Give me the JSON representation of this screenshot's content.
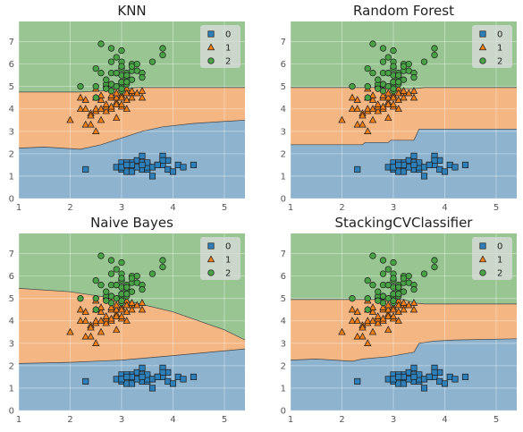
{
  "colors": {
    "class0_region": "#8db3cf",
    "class1_region": "#f4b683",
    "class2_region": "#98c592",
    "class0_marker": "#2f7fb9",
    "class1_marker": "#f07f1a",
    "class2_marker": "#4aa246",
    "plot_bg": "#e5e5e5",
    "grid": "#ffffff"
  },
  "chart_data": [
    {
      "type": "scatter",
      "title": "KNN",
      "xlim": [
        1,
        5.4
      ],
      "ylim": [
        0,
        7.9
      ],
      "xticks": [
        "1",
        "2",
        "3",
        "4",
        "5"
      ],
      "yticks": [
        "0",
        "1",
        "2",
        "3",
        "4",
        "5",
        "6",
        "7"
      ],
      "legend": {
        "position": "top-right",
        "labels": [
          "0",
          "1",
          "2"
        ]
      },
      "regions": {
        "boundary_0_1": [
          [
            1,
            2.25
          ],
          [
            1.5,
            2.3
          ],
          [
            2.2,
            2.2
          ],
          [
            2.6,
            2.4
          ],
          [
            3.0,
            2.7
          ],
          [
            3.4,
            3.0
          ],
          [
            3.8,
            3.2
          ],
          [
            4.4,
            3.35
          ],
          [
            5.4,
            3.5
          ]
        ],
        "boundary_1_2": [
          [
            1,
            4.75
          ],
          [
            2.2,
            4.75
          ],
          [
            2.6,
            4.8
          ],
          [
            3.0,
            4.9
          ],
          [
            3.3,
            4.95
          ],
          [
            3.6,
            4.95
          ],
          [
            4.2,
            4.95
          ],
          [
            5.4,
            4.95
          ]
        ]
      }
    },
    {
      "type": "scatter",
      "title": "Random Forest",
      "xlim": [
        1,
        5.4
      ],
      "ylim": [
        0,
        7.9
      ],
      "xticks": [
        "1",
        "2",
        "3",
        "4",
        "5"
      ],
      "yticks": [
        "0",
        "1",
        "2",
        "3",
        "4",
        "5",
        "6",
        "7"
      ],
      "legend": {
        "position": "top-right",
        "labels": [
          "0",
          "1",
          "2"
        ]
      },
      "regions": {
        "boundary_0_1": [
          [
            1,
            2.4
          ],
          [
            2.4,
            2.4
          ],
          [
            2.45,
            2.5
          ],
          [
            2.9,
            2.5
          ],
          [
            2.95,
            2.6
          ],
          [
            3.4,
            2.6
          ],
          [
            3.5,
            3.1
          ],
          [
            5.4,
            3.1
          ]
        ],
        "boundary_1_2": [
          [
            1,
            4.95
          ],
          [
            2.8,
            4.95
          ],
          [
            3.0,
            4.9
          ],
          [
            3.4,
            4.9
          ],
          [
            3.6,
            4.95
          ],
          [
            5.4,
            4.95
          ]
        ]
      }
    },
    {
      "type": "scatter",
      "title": "Naive Bayes",
      "xlim": [
        1,
        5.4
      ],
      "ylim": [
        0,
        7.9
      ],
      "xticks": [
        "1",
        "2",
        "3",
        "4",
        "5"
      ],
      "yticks": [
        "0",
        "1",
        "2",
        "3",
        "4",
        "5",
        "6",
        "7"
      ],
      "legend": {
        "position": "top-right",
        "labels": [
          "0",
          "1",
          "2"
        ]
      },
      "regions": {
        "boundary_0_1": [
          [
            1,
            2.1
          ],
          [
            2,
            2.15
          ],
          [
            3,
            2.25
          ],
          [
            4,
            2.45
          ],
          [
            5.4,
            2.75
          ]
        ],
        "boundary_1_2": [
          [
            1,
            5.45
          ],
          [
            2,
            5.3
          ],
          [
            3,
            4.95
          ],
          [
            4,
            4.4
          ],
          [
            5,
            3.6
          ],
          [
            5.4,
            3.15
          ]
        ]
      }
    },
    {
      "type": "scatter",
      "title": "StackingCVClassifier",
      "xlim": [
        1,
        5.4
      ],
      "ylim": [
        0,
        7.9
      ],
      "xticks": [
        "1",
        "2",
        "3",
        "4",
        "5"
      ],
      "yticks": [
        "0",
        "1",
        "2",
        "3",
        "4",
        "5",
        "6",
        "7"
      ],
      "legend": {
        "position": "top-right",
        "labels": [
          "0",
          "1",
          "2"
        ]
      },
      "regions": {
        "boundary_0_1": [
          [
            1,
            2.25
          ],
          [
            1.5,
            2.3
          ],
          [
            2.2,
            2.2
          ],
          [
            2.4,
            2.3
          ],
          [
            2.9,
            2.4
          ],
          [
            3.4,
            2.6
          ],
          [
            3.5,
            3.0
          ],
          [
            3.8,
            3.1
          ],
          [
            4.2,
            3.15
          ],
          [
            5.4,
            3.2
          ]
        ],
        "boundary_1_2": [
          [
            1,
            4.95
          ],
          [
            3.2,
            4.95
          ],
          [
            3.4,
            4.8
          ],
          [
            3.6,
            4.75
          ],
          [
            5.4,
            4.75
          ]
        ]
      }
    }
  ],
  "points": {
    "class0": [
      [
        2.3,
        1.3
      ],
      [
        2.9,
        1.4
      ],
      [
        3.0,
        1.4
      ],
      [
        3.0,
        1.3
      ],
      [
        3.1,
        1.5
      ],
      [
        3.1,
        1.2
      ],
      [
        3.2,
        1.4
      ],
      [
        3.2,
        1.6
      ],
      [
        3.2,
        1.3
      ],
      [
        3.3,
        1.4
      ],
      [
        3.3,
        1.7
      ],
      [
        3.4,
        1.5
      ],
      [
        3.4,
        1.4
      ],
      [
        3.4,
        1.6
      ],
      [
        3.4,
        1.3
      ],
      [
        3.4,
        1.9
      ],
      [
        3.5,
        1.5
      ],
      [
        3.5,
        1.3
      ],
      [
        3.5,
        1.4
      ],
      [
        3.6,
        1.4
      ],
      [
        3.6,
        1.0
      ],
      [
        3.7,
        1.5
      ],
      [
        3.8,
        1.9
      ],
      [
        3.8,
        1.6
      ],
      [
        3.8,
        1.5
      ],
      [
        3.9,
        1.3
      ],
      [
        3.9,
        1.7
      ],
      [
        4.0,
        1.2
      ],
      [
        4.1,
        1.5
      ],
      [
        4.2,
        1.4
      ],
      [
        4.4,
        1.5
      ],
      [
        3.0,
        1.6
      ],
      [
        3.1,
        1.6
      ],
      [
        3.2,
        1.2
      ],
      [
        3.0,
        1.4
      ],
      [
        3.5,
        1.6
      ],
      [
        3.3,
        1.4
      ],
      [
        3.6,
        1.4
      ],
      [
        3.8,
        1.7
      ],
      [
        3.7,
        1.5
      ],
      [
        3.4,
        1.5
      ],
      [
        3.2,
        1.5
      ],
      [
        3.1,
        1.5
      ]
    ],
    "class1": [
      [
        2.0,
        3.5
      ],
      [
        2.2,
        4.0
      ],
      [
        2.2,
        4.5
      ],
      [
        2.3,
        4.4
      ],
      [
        2.3,
        4.0
      ],
      [
        2.3,
        3.3
      ],
      [
        2.4,
        3.3
      ],
      [
        2.4,
        3.8
      ],
      [
        2.4,
        3.7
      ],
      [
        2.5,
        3.0
      ],
      [
        2.5,
        3.9
      ],
      [
        2.5,
        4.5
      ],
      [
        2.5,
        4.0
      ],
      [
        2.6,
        3.5
      ],
      [
        2.6,
        4.4
      ],
      [
        2.6,
        4.0
      ],
      [
        2.7,
        3.9
      ],
      [
        2.7,
        4.1
      ],
      [
        2.7,
        4.2
      ],
      [
        2.7,
        5.1
      ],
      [
        2.8,
        4.0
      ],
      [
        2.8,
        4.5
      ],
      [
        2.8,
        4.6
      ],
      [
        2.8,
        4.1
      ],
      [
        2.9,
        4.3
      ],
      [
        2.9,
        4.5
      ],
      [
        2.9,
        4.7
      ],
      [
        2.9,
        3.6
      ],
      [
        2.9,
        4.2
      ],
      [
        3.0,
        4.6
      ],
      [
        3.0,
        4.1
      ],
      [
        3.0,
        4.2
      ],
      [
        3.0,
        4.5
      ],
      [
        3.0,
        5.0
      ],
      [
        3.1,
        4.9
      ],
      [
        3.1,
        4.7
      ],
      [
        3.1,
        4.4
      ],
      [
        3.2,
        4.7
      ],
      [
        3.2,
        4.5
      ],
      [
        3.2,
        4.8
      ],
      [
        3.3,
        4.7
      ],
      [
        3.4,
        4.5
      ],
      [
        3.4,
        4.8
      ],
      [
        3.1,
        4.0
      ],
      [
        2.6,
        4.6
      ],
      [
        2.5,
        4.9
      ]
    ],
    "class2": [
      [
        2.2,
        5.0
      ],
      [
        2.5,
        5.0
      ],
      [
        2.5,
        5.8
      ],
      [
        2.6,
        5.6
      ],
      [
        2.6,
        6.9
      ],
      [
        2.7,
        5.1
      ],
      [
        2.7,
        5.3
      ],
      [
        2.8,
        4.8
      ],
      [
        2.8,
        5.6
      ],
      [
        2.8,
        5.1
      ],
      [
        2.8,
        6.1
      ],
      [
        2.8,
        6.7
      ],
      [
        2.9,
        5.6
      ],
      [
        2.9,
        6.3
      ],
      [
        3.0,
        5.8
      ],
      [
        3.0,
        5.2
      ],
      [
        3.0,
        5.5
      ],
      [
        3.0,
        5.1
      ],
      [
        3.0,
        6.1
      ],
      [
        3.0,
        4.8
      ],
      [
        3.0,
        6.6
      ],
      [
        3.1,
        5.5
      ],
      [
        3.1,
        5.6
      ],
      [
        3.1,
        5.4
      ],
      [
        3.2,
        5.7
      ],
      [
        3.2,
        6.0
      ],
      [
        3.2,
        5.3
      ],
      [
        3.3,
        5.7
      ],
      [
        3.3,
        6.0
      ],
      [
        3.4,
        5.6
      ],
      [
        3.4,
        5.4
      ],
      [
        3.6,
        6.1
      ],
      [
        3.8,
        6.4
      ],
      [
        3.8,
        6.7
      ],
      [
        2.9,
        5.6
      ],
      [
        2.7,
        4.9
      ],
      [
        3.0,
        5.9
      ],
      [
        2.5,
        4.5
      ],
      [
        3.1,
        5.1
      ],
      [
        3.0,
        5.2
      ],
      [
        2.8,
        5.1
      ],
      [
        3.2,
        5.9
      ],
      [
        3.1,
        5.5
      ],
      [
        3.0,
        4.9
      ],
      [
        3.1,
        5.2
      ],
      [
        2.9,
        5.0
      ]
    ]
  }
}
